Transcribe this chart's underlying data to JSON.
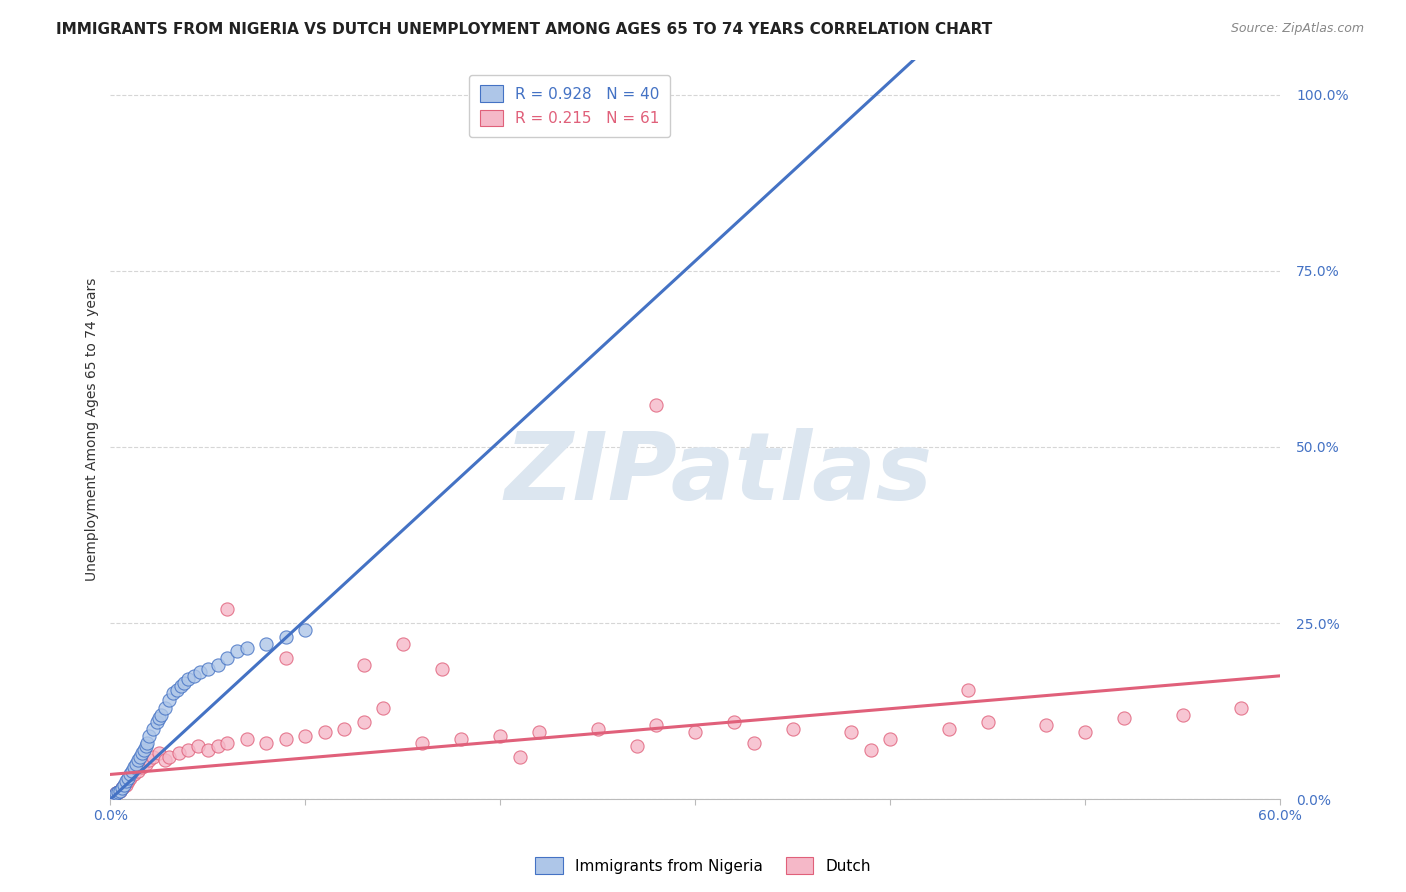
{
  "title": "IMMIGRANTS FROM NIGERIA VS DUTCH UNEMPLOYMENT AMONG AGES 65 TO 74 YEARS CORRELATION CHART",
  "source": "Source: ZipAtlas.com",
  "ylabel": "Unemployment Among Ages 65 to 74 years",
  "ytick_labels": [
    "0.0%",
    "25.0%",
    "50.0%",
    "75.0%",
    "100.0%"
  ],
  "ytick_values": [
    0.0,
    0.25,
    0.5,
    0.75,
    1.0
  ],
  "xlim": [
    0.0,
    0.6
  ],
  "ylim": [
    0.0,
    1.05
  ],
  "watermark": "ZIPatlas",
  "legend1_label": "Immigrants from Nigeria",
  "legend2_label": "Dutch",
  "blue_R": "0.928",
  "blue_N": "40",
  "pink_R": "0.215",
  "pink_N": "61",
  "blue_color": "#aec6e8",
  "pink_color": "#f5b8c8",
  "blue_line_color": "#4472c4",
  "pink_line_color": "#e0607a",
  "blue_scatter_x": [
    0.002,
    0.003,
    0.004,
    0.005,
    0.006,
    0.007,
    0.008,
    0.009,
    0.01,
    0.011,
    0.012,
    0.013,
    0.014,
    0.015,
    0.016,
    0.017,
    0.018,
    0.019,
    0.02,
    0.022,
    0.024,
    0.025,
    0.026,
    0.028,
    0.03,
    0.032,
    0.034,
    0.036,
    0.038,
    0.04,
    0.043,
    0.046,
    0.05,
    0.055,
    0.06,
    0.065,
    0.07,
    0.08,
    0.09,
    0.1
  ],
  "blue_scatter_y": [
    0.005,
    0.008,
    0.01,
    0.012,
    0.015,
    0.02,
    0.025,
    0.03,
    0.035,
    0.04,
    0.045,
    0.05,
    0.055,
    0.06,
    0.065,
    0.07,
    0.075,
    0.08,
    0.09,
    0.1,
    0.11,
    0.115,
    0.12,
    0.13,
    0.14,
    0.15,
    0.155,
    0.16,
    0.165,
    0.17,
    0.175,
    0.18,
    0.185,
    0.19,
    0.2,
    0.21,
    0.215,
    0.22,
    0.23,
    0.24
  ],
  "pink_scatter_x": [
    0.002,
    0.003,
    0.004,
    0.005,
    0.006,
    0.007,
    0.008,
    0.009,
    0.01,
    0.012,
    0.014,
    0.016,
    0.018,
    0.02,
    0.022,
    0.025,
    0.028,
    0.03,
    0.035,
    0.04,
    0.045,
    0.05,
    0.055,
    0.06,
    0.07,
    0.08,
    0.09,
    0.1,
    0.11,
    0.12,
    0.13,
    0.14,
    0.15,
    0.16,
    0.18,
    0.2,
    0.22,
    0.25,
    0.28,
    0.3,
    0.32,
    0.35,
    0.38,
    0.4,
    0.43,
    0.45,
    0.48,
    0.5,
    0.52,
    0.55,
    0.58,
    0.06,
    0.09,
    0.13,
    0.17,
    0.21,
    0.27,
    0.33,
    0.39,
    0.44,
    0.28
  ],
  "pink_scatter_y": [
    0.005,
    0.008,
    0.01,
    0.012,
    0.015,
    0.018,
    0.02,
    0.025,
    0.03,
    0.035,
    0.04,
    0.045,
    0.05,
    0.055,
    0.06,
    0.065,
    0.055,
    0.06,
    0.065,
    0.07,
    0.075,
    0.07,
    0.075,
    0.08,
    0.085,
    0.08,
    0.085,
    0.09,
    0.095,
    0.1,
    0.11,
    0.13,
    0.22,
    0.08,
    0.085,
    0.09,
    0.095,
    0.1,
    0.105,
    0.095,
    0.11,
    0.1,
    0.095,
    0.085,
    0.1,
    0.11,
    0.105,
    0.095,
    0.115,
    0.12,
    0.13,
    0.27,
    0.2,
    0.19,
    0.185,
    0.06,
    0.075,
    0.08,
    0.07,
    0.155,
    0.56
  ],
  "blue_trend_x": [
    -0.005,
    0.42
  ],
  "blue_trend_y": [
    -0.013,
    1.07
  ],
  "pink_trend_x": [
    0.0,
    0.6
  ],
  "pink_trend_y": [
    0.035,
    0.175
  ],
  "background_color": "#ffffff",
  "grid_color": "#cccccc",
  "title_fontsize": 11,
  "axis_label_fontsize": 10,
  "tick_fontsize": 10,
  "watermark_color": "#dce6f0",
  "watermark_fontsize": 68
}
